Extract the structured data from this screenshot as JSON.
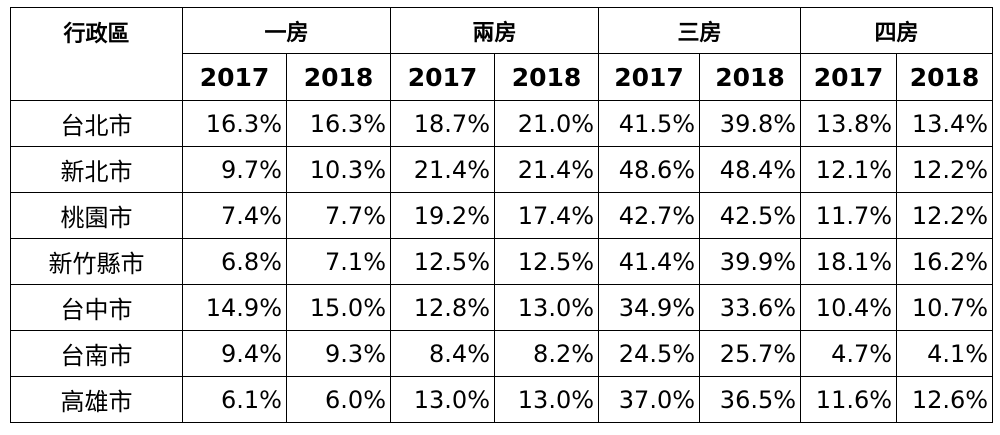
{
  "chart_data": {
    "type": "table",
    "corner_header": "行政區",
    "groups": [
      "一房",
      "兩房",
      "三房",
      "四房"
    ],
    "years": [
      "2017",
      "2018"
    ],
    "rows": [
      {
        "district": "台北市",
        "values": [
          "16.3%",
          "16.3%",
          "18.7%",
          "21.0%",
          "41.5%",
          "39.8%",
          "13.8%",
          "13.4%"
        ]
      },
      {
        "district": "新北市",
        "values": [
          "9.7%",
          "10.3%",
          "21.4%",
          "21.4%",
          "48.6%",
          "48.4%",
          "12.1%",
          "12.2%"
        ]
      },
      {
        "district": "桃園市",
        "values": [
          "7.4%",
          "7.7%",
          "19.2%",
          "17.4%",
          "42.7%",
          "42.5%",
          "11.7%",
          "12.2%"
        ]
      },
      {
        "district": "新竹縣市",
        "values": [
          "6.8%",
          "7.1%",
          "12.5%",
          "12.5%",
          "41.4%",
          "39.9%",
          "18.1%",
          "16.2%"
        ]
      },
      {
        "district": "台中市",
        "values": [
          "14.9%",
          "15.0%",
          "12.8%",
          "13.0%",
          "34.9%",
          "33.6%",
          "10.4%",
          "10.7%"
        ]
      },
      {
        "district": "台南市",
        "values": [
          "9.4%",
          "9.3%",
          "8.4%",
          "8.2%",
          "24.5%",
          "25.7%",
          "4.7%",
          "4.1%"
        ]
      },
      {
        "district": "高雄市",
        "values": [
          "6.1%",
          "6.0%",
          "13.0%",
          "13.0%",
          "37.0%",
          "36.5%",
          "11.6%",
          "12.6%"
        ]
      }
    ]
  }
}
